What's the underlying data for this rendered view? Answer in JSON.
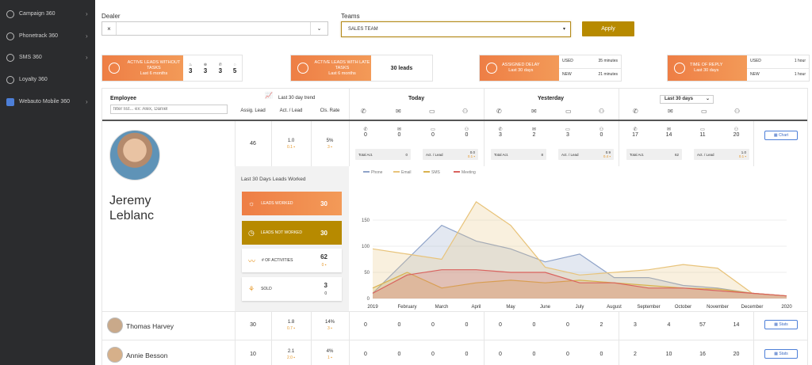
{
  "sidebar": {
    "items": [
      {
        "label": "Campaign 360"
      },
      {
        "label": "Phonetrack 360"
      },
      {
        "label": "SMS 360"
      },
      {
        "label": "Loyalty 360"
      },
      {
        "label": "Webauto Mobile 360"
      }
    ]
  },
  "filters": {
    "dealer_label": "Dealer",
    "dealer_clear": "×",
    "teams_label": "Teams",
    "teams_value": "SALES TEAM",
    "apply_label": "Apply"
  },
  "kpis": {
    "k1": {
      "title": "ACTIVE LEADS WITHOUT TASKS",
      "sub": "Last 6 months",
      "values": [
        "3",
        "3",
        "3",
        "5"
      ]
    },
    "k2": {
      "title": "ACTIVE LEADS WITH LATE TASKS",
      "sub": "Last 6 months",
      "value": "30 leads"
    },
    "k3": {
      "title": "ASSIGNED DELAY",
      "sub": "Last 30 days",
      "used_label": "USED",
      "used_value": "35 minutes",
      "new_label": "NEW",
      "new_value": "21 minutes"
    },
    "k4": {
      "title": "TIME OF REPLY",
      "sub": "Last 30 days",
      "used_label": "USED",
      "used_value": "1 hour",
      "new_label": "NEW",
      "new_value": "1 hour"
    }
  },
  "table": {
    "employee_label": "Employee",
    "filter_placeholder": "filter list... ex: Alex, Daniel",
    "trend_label": "Last 30 day trend",
    "today_label": "Today",
    "yesterday_label": "Yesterday",
    "period_select": "Last 30 days",
    "assig_label": "Assig. Lead",
    "act_label": "Act. / Lead",
    "cls_label": "Cls. Rate",
    "total_act_label": "Total Act.",
    "act_lead_label": "Act. / Lead",
    "chart_button": "Chart",
    "stats_button": "Stats",
    "rows": [
      {
        "name_first": "Jeremy",
        "name_last": "Leblanc",
        "assig": "46",
        "act": "1.0",
        "act_sub": "0.1 ▪",
        "cls": "5%",
        "cls_sub": "3 ▪",
        "today": [
          "0",
          "0",
          "0",
          "0"
        ],
        "today_total": "0",
        "today_act": "0.0",
        "today_act_sub": "0.1 ▪",
        "yest": [
          "3",
          "2",
          "3",
          "0"
        ],
        "yest_total": "8",
        "yest_act": "0.9",
        "yest_act_sub": "0.4 ▪",
        "period": [
          "17",
          "14",
          "11",
          "20"
        ],
        "period_total": "62",
        "period_act": "1.0",
        "period_act_sub": "0.1 ▪"
      },
      {
        "name": "Thomas Harvey",
        "assig": "30",
        "act": "1.8",
        "act_sub": "0.7 ▪",
        "cls": "14%",
        "cls_sub": "3 ▪",
        "today": [
          "0",
          "0",
          "0",
          "0"
        ],
        "yest": [
          "0",
          "0",
          "0",
          "2"
        ],
        "period": [
          "3",
          "4",
          "57",
          "14"
        ]
      },
      {
        "name": "Annie Besson",
        "assig": "10",
        "act": "2.1",
        "act_sub": "2.0 ▪",
        "cls": "4%",
        "cls_sub": "1 ▪",
        "today": [
          "0",
          "0",
          "0",
          "0"
        ],
        "yest": [
          "0",
          "0",
          "0",
          "0"
        ],
        "period": [
          "2",
          "10",
          "16",
          "20"
        ]
      }
    ]
  },
  "leads_panel": {
    "title": "Last 30 Days Leads Worked",
    "worked_label": "LEADS WORKED",
    "worked_value": "30",
    "not_worked_label": "LEADS NOT WORKED",
    "not_worked_value": "30",
    "activities_label": "# OF ACTIVITIES",
    "activities_value": "62",
    "activities_sub": "0 ▪",
    "sold_label": "SOLD",
    "sold_value": "3",
    "sold_sub": "0"
  },
  "colors": {
    "accent": "#b78a00",
    "orange": "#ef8146",
    "blue": "#4d7fd8"
  },
  "chart_data": {
    "type": "area",
    "categories": [
      "2019",
      "February",
      "March",
      "April",
      "May",
      "June",
      "July",
      "August",
      "September",
      "October",
      "November",
      "December",
      "2020"
    ],
    "ylim": [
      0,
      200
    ],
    "yticks": [
      "0",
      "50",
      "100",
      "150"
    ],
    "series": [
      {
        "name": "Phone",
        "color": "#8fa3c8",
        "values": [
          10,
          75,
          140,
          110,
          95,
          70,
          85,
          40,
          40,
          25,
          20,
          10,
          5
        ]
      },
      {
        "name": "Email",
        "color": "#e8c37a",
        "values": [
          95,
          85,
          75,
          185,
          140,
          60,
          45,
          50,
          55,
          65,
          58,
          10,
          5
        ]
      },
      {
        "name": "SMS",
        "color": "#d9b24e",
        "values": [
          20,
          50,
          20,
          30,
          35,
          30,
          35,
          30,
          25,
          20,
          18,
          10,
          5
        ]
      },
      {
        "name": "Meeting",
        "color": "#d9625e",
        "values": [
          10,
          45,
          55,
          55,
          50,
          50,
          30,
          30,
          20,
          20,
          15,
          10,
          5
        ]
      }
    ]
  }
}
